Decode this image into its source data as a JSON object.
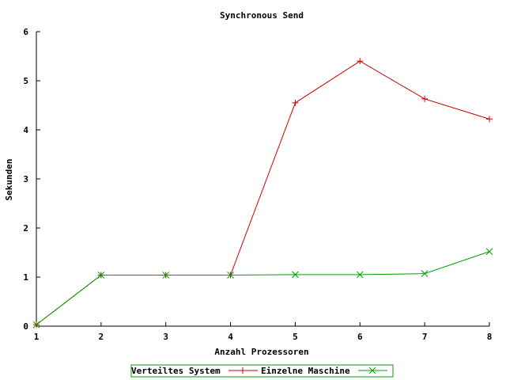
{
  "chart_data": {
    "type": "line",
    "title": "Synchronous Send",
    "xlabel": "Anzahl Prozessoren",
    "ylabel": "Sekunden",
    "x": [
      1,
      2,
      3,
      4,
      5,
      6,
      7,
      8
    ],
    "x_ticks": [
      "1",
      "2",
      "3",
      "4",
      "5",
      "6",
      "7",
      "8"
    ],
    "xlim": [
      1,
      8
    ],
    "y_ticks": [
      "0",
      "1",
      "2",
      "3",
      "4",
      "5",
      "6"
    ],
    "ylim": [
      0,
      6
    ],
    "grid": false,
    "legend_position": "bottom-center",
    "series": [
      {
        "name": "Verteiltes System",
        "color": "#cc0000",
        "marker": "plus",
        "values": [
          0.03,
          1.04,
          1.04,
          1.04,
          4.55,
          5.4,
          4.63,
          4.22
        ]
      },
      {
        "name": "Einzelne Maschine",
        "color": "#00a000",
        "marker": "cross",
        "values": [
          0.03,
          1.04,
          1.04,
          1.04,
          1.05,
          1.05,
          1.07,
          1.52
        ]
      }
    ]
  }
}
